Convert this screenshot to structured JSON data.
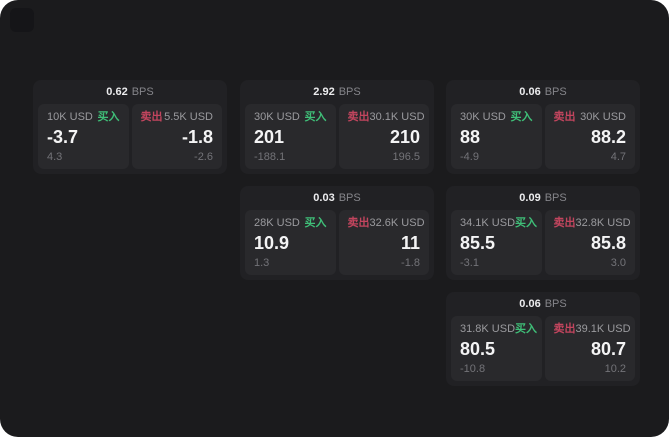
{
  "labels": {
    "bps_unit": "BPS",
    "buy": "买入",
    "sell": "卖出"
  },
  "colors": {
    "buy": "#3fbf78",
    "sell": "#c2455e",
    "panel_bg": "#29292c",
    "card_bg": "#212124",
    "screen_bg": "#1b1b1d"
  },
  "cards": [
    {
      "bps": "0.62",
      "buy": {
        "size": "10K USD",
        "price": "-3.7",
        "delta": "4.3"
      },
      "sell": {
        "size": "5.5K USD",
        "price": "-1.8",
        "delta": "-2.6"
      }
    },
    {
      "bps": "2.92",
      "buy": {
        "size": "30K USD",
        "price": "201",
        "delta": "-188.1"
      },
      "sell": {
        "size": "30.1K USD",
        "price": "210",
        "delta": "196.5"
      }
    },
    {
      "bps": "0.06",
      "buy": {
        "size": "30K USD",
        "price": "88",
        "delta": "-4.9"
      },
      "sell": {
        "size": "30K USD",
        "price": "88.2",
        "delta": "4.7"
      }
    },
    {
      "bps": "0.03",
      "buy": {
        "size": "28K USD",
        "price": "10.9",
        "delta": "1.3"
      },
      "sell": {
        "size": "32.6K USD",
        "price": "11",
        "delta": "-1.8"
      }
    },
    {
      "bps": "0.09",
      "buy": {
        "size": "34.1K USD",
        "price": "85.5",
        "delta": "-3.1"
      },
      "sell": {
        "size": "32.8K USD",
        "price": "85.8",
        "delta": "3.0"
      }
    },
    {
      "bps": "0.06",
      "buy": {
        "size": "31.8K USD",
        "price": "80.5",
        "delta": "-10.8"
      },
      "sell": {
        "size": "39.1K USD",
        "price": "80.7",
        "delta": "10.2"
      }
    }
  ]
}
